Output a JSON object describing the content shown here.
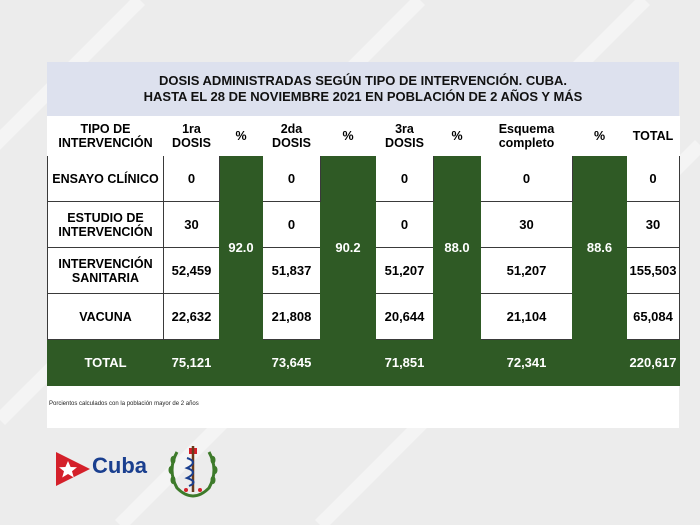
{
  "title": {
    "line1": "DOSIS ADMINISTRADAS  SEGÚN TIPO DE INTERVENCIÓN. CUBA.",
    "line2": "HASTA EL 28 DE NOVIEMBRE 2021 EN POBLACIÓN  DE 2 AÑOS Y MÁS"
  },
  "headers": {
    "tipo": "TIPO DE INTERVENCIÓN",
    "d1": "1ra DOSIS",
    "p1": "%",
    "d2": "2da DOSIS",
    "p2": "%",
    "d3": "3ra DOSIS",
    "p3": "%",
    "esq": "Esquema completo",
    "p4": "%",
    "total": "TOTAL"
  },
  "rows": [
    {
      "tipo": "ENSAYO CLÍNICO",
      "d1": "0",
      "d2": "0",
      "d3": "0",
      "esq": "0",
      "total": "0"
    },
    {
      "tipo": "ESTUDIO DE INTERVENCIÓN",
      "d1": "30",
      "d2": "0",
      "d3": "0",
      "esq": "30",
      "total": "30"
    },
    {
      "tipo": "INTERVENCIÓN SANITARIA",
      "d1": "52,459",
      "d2": "51,837",
      "d3": "51,207",
      "esq": "51,207",
      "total": "155,503"
    },
    {
      "tipo": "VACUNA",
      "d1": "22,632",
      "d2": "21,808",
      "d3": "20,644",
      "esq": "21,104",
      "total": "65,084"
    }
  ],
  "percents": {
    "p1": "92.0",
    "p2": "90.2",
    "p3": "88.0",
    "p4": "88.6"
  },
  "total_row": {
    "tipo": "TOTAL",
    "d1": "75,121",
    "d2": "73,645",
    "d3": "71,851",
    "esq": "72,341",
    "total": "220,617"
  },
  "footnote": "Porcientos calculados con la población mayor de 2 años",
  "logo": {
    "text": "Cuba"
  },
  "colors": {
    "green": "#2f5a25",
    "title_band": "#dde1ee",
    "cuba_blue": "#1a3f8f",
    "cuba_red": "#d4202a"
  }
}
